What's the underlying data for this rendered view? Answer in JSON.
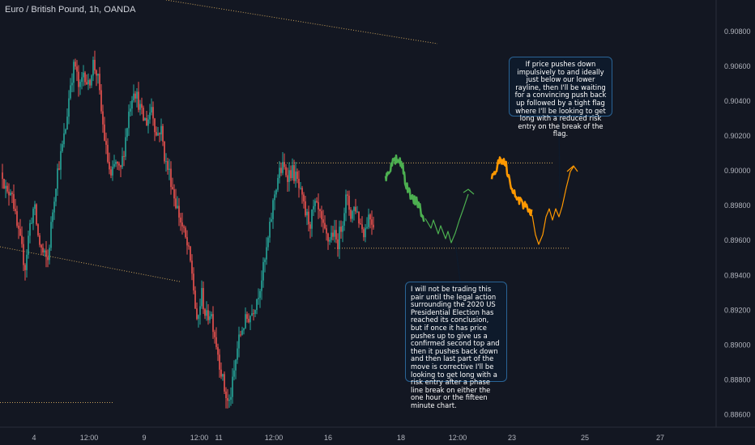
{
  "header": {
    "title": "Euro / British Pound, 1h, OANDA"
  },
  "chart_data": {
    "type": "candlestick",
    "symbol": "Euro / British Pound",
    "interval": "1h",
    "source": "OANDA",
    "x_ticks": [
      "4",
      "12:00",
      "9",
      "12:00",
      "11",
      "12:00",
      "16",
      "18",
      "12:00",
      "23",
      "25",
      "27"
    ],
    "y_ticks": [
      "0.90800",
      "0.90600",
      "0.90400",
      "0.90200",
      "0.90000",
      "0.89800",
      "0.89600",
      "0.89400",
      "0.89200",
      "0.89000",
      "0.88800",
      "0.88600"
    ],
    "ylim": [
      0.8851,
      0.9098
    ],
    "grid": false,
    "colors": {
      "up": "#26a69a",
      "down": "#ef5350",
      "projection_green": "#4caf50",
      "projection_orange": "#ff9800",
      "trendline": "#c7a05a"
    },
    "price_path": [
      0.8999,
      0.8985,
      0.8992,
      0.897,
      0.8958,
      0.8945,
      0.8968,
      0.898,
      0.896,
      0.8952,
      0.8948,
      0.8975,
      0.8998,
      0.901,
      0.9025,
      0.905,
      0.9062,
      0.9045,
      0.9058,
      0.9048,
      0.9062,
      0.9055,
      0.903,
      0.901,
      0.8995,
      0.9005,
      0.8998,
      0.9015,
      0.9035,
      0.9048,
      0.904,
      0.903,
      0.9028,
      0.9038,
      0.902,
      0.9025,
      0.9005,
      0.8998,
      0.8985,
      0.8975,
      0.8965,
      0.8955,
      0.894,
      0.891,
      0.893,
      0.8915,
      0.892,
      0.8905,
      0.889,
      0.8875,
      0.8865,
      0.888,
      0.89,
      0.891,
      0.8915,
      0.8918,
      0.8925,
      0.8935,
      0.8948,
      0.8965,
      0.8985,
      0.8998,
      0.9002,
      0.8998,
      0.9,
      0.8995,
      0.8985,
      0.8975,
      0.897,
      0.898,
      0.8975,
      0.8965,
      0.896,
      0.8965,
      0.8958,
      0.897,
      0.8985,
      0.8975,
      0.898,
      0.897,
      0.8965,
      0.8975,
      0.897
    ],
    "levels": [
      {
        "name": "upper rayline",
        "value": 0.90045
      },
      {
        "name": "lower rayline",
        "value": 0.89556
      }
    ],
    "annotations": [
      "If price pushes down impulsively to and ideally just below our lower rayline, then I'll be waiting for a convincing push back up followed by a tight flag where I'll be looking to get long with a reduced risk entry on the break of the flag.",
      "I will not be trading this pair until the legal action surrounding the 2020 US Presidential Election has reached its conclusion, but if once it has price pushes up to give us a confirmed second top and then it pushes back down and then last part of the move is corrective I'll be looking to get long with a risk entry after a phase line break on either the one hour or the fifteen minute chart."
    ]
  }
}
